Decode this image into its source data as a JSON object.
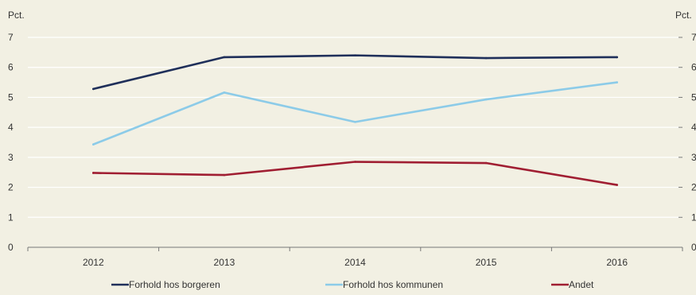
{
  "chart_data": {
    "type": "line",
    "title": "",
    "xlabel": "",
    "ylabel_left": "Pct.",
    "ylabel_right": "Pct.",
    "categories": [
      "2012",
      "2013",
      "2014",
      "2015",
      "2016"
    ],
    "ylim": [
      0,
      7
    ],
    "yticks": [
      "0",
      "1",
      "2",
      "3",
      "4",
      "5",
      "6",
      "7"
    ],
    "grid": true,
    "legend_position": "bottom",
    "series": [
      {
        "name": "Forhold hos borgeren",
        "color": "#1f2f5a",
        "values": [
          5.28,
          6.34,
          6.4,
          6.31,
          6.34
        ]
      },
      {
        "name": "Forhold hos kommunen",
        "color": "#8ccbe8",
        "values": [
          3.43,
          5.16,
          4.18,
          4.93,
          5.5
        ]
      },
      {
        "name": "Andet",
        "color": "#a01e32",
        "values": [
          2.48,
          2.41,
          2.85,
          2.81,
          2.08
        ]
      }
    ]
  }
}
